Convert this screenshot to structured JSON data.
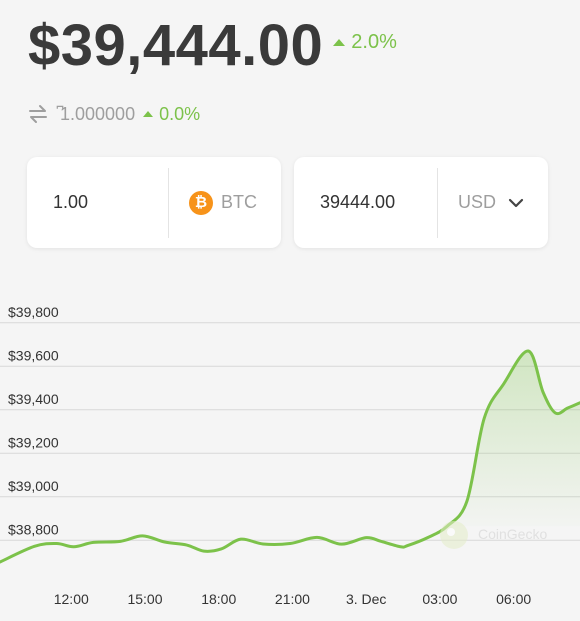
{
  "header": {
    "price": "$39,444.00",
    "change": "2.0%",
    "btc_amount": "͆1.000000",
    "btc_change": "0.0%"
  },
  "converter": {
    "left": {
      "value": "1.00",
      "unit": "BTC",
      "icon": "bitcoin-icon"
    },
    "right": {
      "value": "39444.00",
      "unit": "USD",
      "icon": "chevron-down-icon"
    }
  },
  "colors": {
    "positive": "#7cc24a",
    "bitcoin": "#f7931a",
    "price_text": "#3a3a3a"
  },
  "watermark": "CoinGecko",
  "chart_data": {
    "type": "area",
    "x_tick_labels": [
      "12:00",
      "15:00",
      "18:00",
      "21:00",
      "3. Dec",
      "03:00",
      "06:00"
    ],
    "x_tick_hours": [
      0,
      3,
      6,
      9,
      12,
      15,
      18
    ],
    "y_tick_labels": [
      "$38,800",
      "$39,000",
      "$39,200",
      "$39,400",
      "$39,600",
      "$39,800"
    ],
    "y_tick_values": [
      38800,
      39000,
      39200,
      39400,
      39600,
      39800
    ],
    "ylim": [
      38700,
      39900
    ],
    "xlim": [
      -2.9,
      20.7
    ],
    "grid": true,
    "series": [
      {
        "x": [
          -2.9,
          -1.5,
          -0.6,
          0.1,
          0.9,
          2.0,
          2.9,
          3.8,
          4.7,
          5.4,
          6.1,
          6.9,
          7.8,
          8.9,
          10.0,
          11.0,
          12.0,
          12.6,
          13.4,
          13.7,
          14.5,
          15.3,
          16.1,
          16.8,
          17.6,
          18.6,
          19.2,
          19.7,
          20.2,
          20.7
        ],
        "y": [
          38700,
          38772,
          38785,
          38770,
          38790,
          38795,
          38820,
          38792,
          38778,
          38750,
          38760,
          38805,
          38783,
          38785,
          38813,
          38782,
          38812,
          38795,
          38770,
          38776,
          38812,
          38865,
          38980,
          39360,
          39520,
          39670,
          39480,
          39385,
          39408,
          39432
        ]
      }
    ]
  }
}
